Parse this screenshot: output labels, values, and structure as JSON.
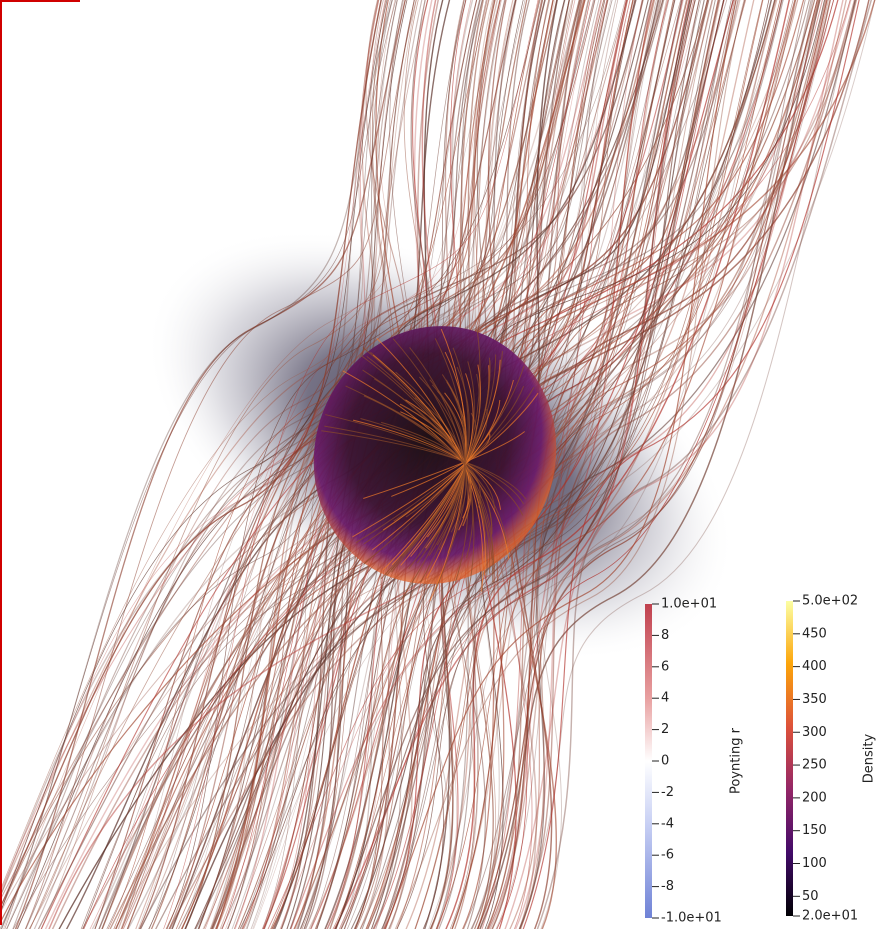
{
  "legends": [
    {
      "title": "Poynting r",
      "range": [
        -10,
        10
      ],
      "ticks": [
        {
          "value": 10,
          "label": "1.0e+01"
        },
        8,
        6,
        4,
        2,
        0,
        -2,
        -4,
        -6,
        -8,
        {
          "value": -10,
          "label": "-1.0e+01"
        }
      ]
    },
    {
      "title": "Density",
      "range": [
        20,
        500
      ],
      "ticks": [
        {
          "value": 500,
          "label": "5.0e+02"
        },
        450,
        400,
        350,
        300,
        250,
        200,
        150,
        100,
        50,
        {
          "value": 20,
          "label": "2.0e+01"
        }
      ]
    }
  ]
}
